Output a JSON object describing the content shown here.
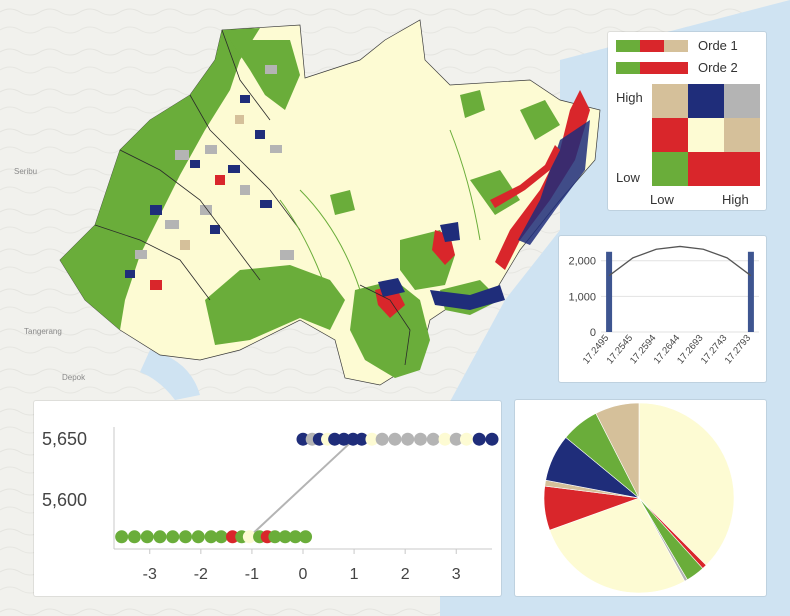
{
  "map": {
    "place_labels": [
      "Seribu",
      "Tangerang",
      "Depok"
    ],
    "colors": {
      "land": "#f2f2ee",
      "water": "#cfe3f2",
      "region_fill": "#fdfbd3",
      "green": "#6aad3a",
      "red": "#d9262b",
      "navy": "#1f2d7a",
      "gray": "#b4b4b4",
      "tan": "#d5c09a"
    }
  },
  "legend": {
    "row1_label": "Orde 1",
    "row2_label": "Orde 2",
    "y_high": "High",
    "y_low": "Low",
    "x_low": "Low",
    "x_high": "High",
    "matrix_colors": [
      [
        "#d5c09a",
        "#1f2d7a",
        "#b4b4b4"
      ],
      [
        "#d9262b",
        "#fdfbd3",
        "#d5c09a"
      ],
      [
        "#6aad3a",
        "#d9262b",
        "#d9262b"
      ]
    ]
  },
  "chart_data": [
    {
      "type": "bar",
      "name": "histogram",
      "x_ticks": [
        "17.2495",
        "17.2545",
        "17.2594",
        "17.2644",
        "17.2693",
        "17.2743",
        "17.2793"
      ],
      "y_ticks": [
        "0",
        "1,000",
        "2,000"
      ],
      "ylim": [
        0,
        2300
      ],
      "bars": [
        {
          "x": 17.2495,
          "value": 2250
        },
        {
          "x": 17.2793,
          "value": 2250
        }
      ],
      "curve": {
        "x": [
          17.2495,
          17.2545,
          17.2594,
          17.2644,
          17.2693,
          17.2743,
          17.2793
        ],
        "y": [
          1580,
          2080,
          2320,
          2400,
          2320,
          2080,
          1580
        ]
      },
      "xlim": [
        17.2478,
        17.281
      ]
    },
    {
      "type": "scatter",
      "name": "scatter",
      "x_ticks": [
        "-3",
        "-2",
        "-1",
        "0",
        "1",
        "2",
        "3"
      ],
      "y_ticks": [
        "5,650",
        "5,600"
      ],
      "xlim": [
        -3.7,
        3.7
      ],
      "ylim": [
        5560,
        5660
      ],
      "trend_line": {
        "x": [
          -1.05,
          1.0
        ],
        "y": [
          5570,
          5650
        ]
      },
      "points": [
        {
          "x": -3.55,
          "y": 5570,
          "color": "green"
        },
        {
          "x": -3.3,
          "y": 5570,
          "color": "green"
        },
        {
          "x": -3.05,
          "y": 5570,
          "color": "green"
        },
        {
          "x": -2.8,
          "y": 5570,
          "color": "green"
        },
        {
          "x": -2.55,
          "y": 5570,
          "color": "green"
        },
        {
          "x": -2.3,
          "y": 5570,
          "color": "green"
        },
        {
          "x": -2.05,
          "y": 5570,
          "color": "green"
        },
        {
          "x": -1.8,
          "y": 5570,
          "color": "green"
        },
        {
          "x": -1.6,
          "y": 5570,
          "color": "green"
        },
        {
          "x": -1.38,
          "y": 5570,
          "color": "red"
        },
        {
          "x": -1.2,
          "y": 5570,
          "color": "green"
        },
        {
          "x": -1.05,
          "y": 5570,
          "color": "cream"
        },
        {
          "x": -0.85,
          "y": 5570,
          "color": "green"
        },
        {
          "x": -0.7,
          "y": 5570,
          "color": "red"
        },
        {
          "x": -0.55,
          "y": 5570,
          "color": "green"
        },
        {
          "x": -0.35,
          "y": 5570,
          "color": "green"
        },
        {
          "x": -0.15,
          "y": 5570,
          "color": "green"
        },
        {
          "x": 0.05,
          "y": 5570,
          "color": "green"
        },
        {
          "x": 0.0,
          "y": 5650,
          "color": "navy"
        },
        {
          "x": 0.18,
          "y": 5650,
          "color": "gray"
        },
        {
          "x": 0.32,
          "y": 5650,
          "color": "navy"
        },
        {
          "x": 0.48,
          "y": 5650,
          "color": "cream"
        },
        {
          "x": 0.62,
          "y": 5650,
          "color": "navy"
        },
        {
          "x": 0.8,
          "y": 5650,
          "color": "navy"
        },
        {
          "x": 0.98,
          "y": 5650,
          "color": "navy"
        },
        {
          "x": 1.15,
          "y": 5650,
          "color": "navy"
        },
        {
          "x": 1.35,
          "y": 5650,
          "color": "cream"
        },
        {
          "x": 1.55,
          "y": 5650,
          "color": "gray"
        },
        {
          "x": 1.8,
          "y": 5650,
          "color": "gray"
        },
        {
          "x": 2.05,
          "y": 5650,
          "color": "gray"
        },
        {
          "x": 2.3,
          "y": 5650,
          "color": "gray"
        },
        {
          "x": 2.55,
          "y": 5650,
          "color": "gray"
        },
        {
          "x": 2.78,
          "y": 5650,
          "color": "cream"
        },
        {
          "x": 3.0,
          "y": 5650,
          "color": "gray"
        },
        {
          "x": 3.2,
          "y": 5650,
          "color": "cream"
        },
        {
          "x": 3.45,
          "y": 5650,
          "color": "navy"
        },
        {
          "x": 3.7,
          "y": 5650,
          "color": "navy"
        }
      ]
    },
    {
      "type": "pie",
      "name": "pie",
      "slices": [
        {
          "value": 37.5,
          "color": "#fdfbd3"
        },
        {
          "value": 0.8,
          "color": "#d9262b"
        },
        {
          "value": 3.2,
          "color": "#6aad3a"
        },
        {
          "value": 0.5,
          "color": "#b4b4b4"
        },
        {
          "value": 27.5,
          "color": "#fdfbd3"
        },
        {
          "value": 7.5,
          "color": "#d9262b"
        },
        {
          "value": 1.0,
          "color": "#d5c09a"
        },
        {
          "value": 8.0,
          "color": "#1f2d7a"
        },
        {
          "value": 6.5,
          "color": "#6aad3a"
        },
        {
          "value": 7.5,
          "color": "#d5c09a"
        }
      ]
    }
  ]
}
